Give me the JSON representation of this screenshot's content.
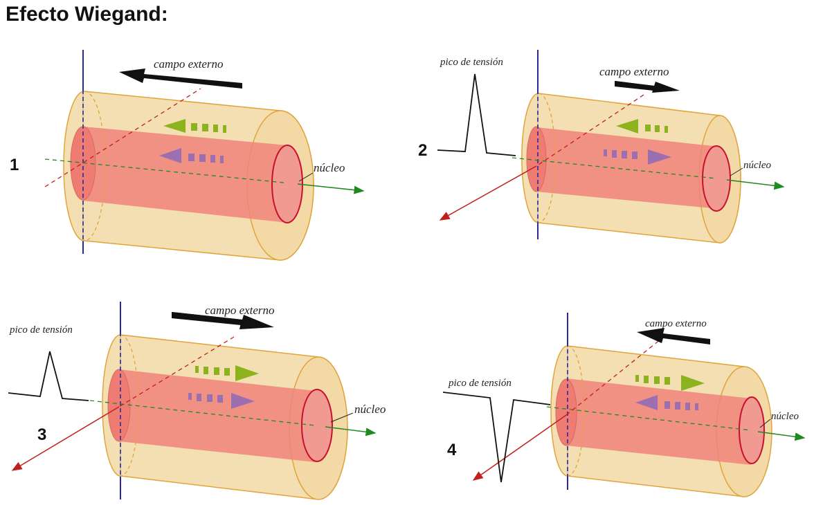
{
  "title": "Efecto Wiegand:",
  "labels": {
    "external_field": "campo externo",
    "voltage_peak": "pico de tensión",
    "core": "núcleo"
  },
  "panels": [
    {
      "number": "1",
      "field_direction": "left",
      "core_direction": "left",
      "shell_direction": "left",
      "voltage_pulse": "none"
    },
    {
      "number": "2",
      "field_direction": "right",
      "core_direction": "right",
      "shell_direction": "left",
      "voltage_pulse": "positive"
    },
    {
      "number": "3",
      "field_direction": "right",
      "core_direction": "right",
      "shell_direction": "right",
      "voltage_pulse": "positive"
    },
    {
      "number": "4",
      "field_direction": "left",
      "core_direction": "left",
      "shell_direction": "right",
      "voltage_pulse": "negative"
    }
  ],
  "colors": {
    "shell_fill": "#f2d9a6",
    "shell_stroke": "#e0a43a",
    "core_fill": "#f0847a",
    "core_end": "#c8102e",
    "shell_arrow": "#8cb31e",
    "core_arrow": "#9b6fb0",
    "axis_green": "#1f8a1f",
    "axis_red": "#c0201a",
    "axis_blue": "#2a2a9a"
  }
}
